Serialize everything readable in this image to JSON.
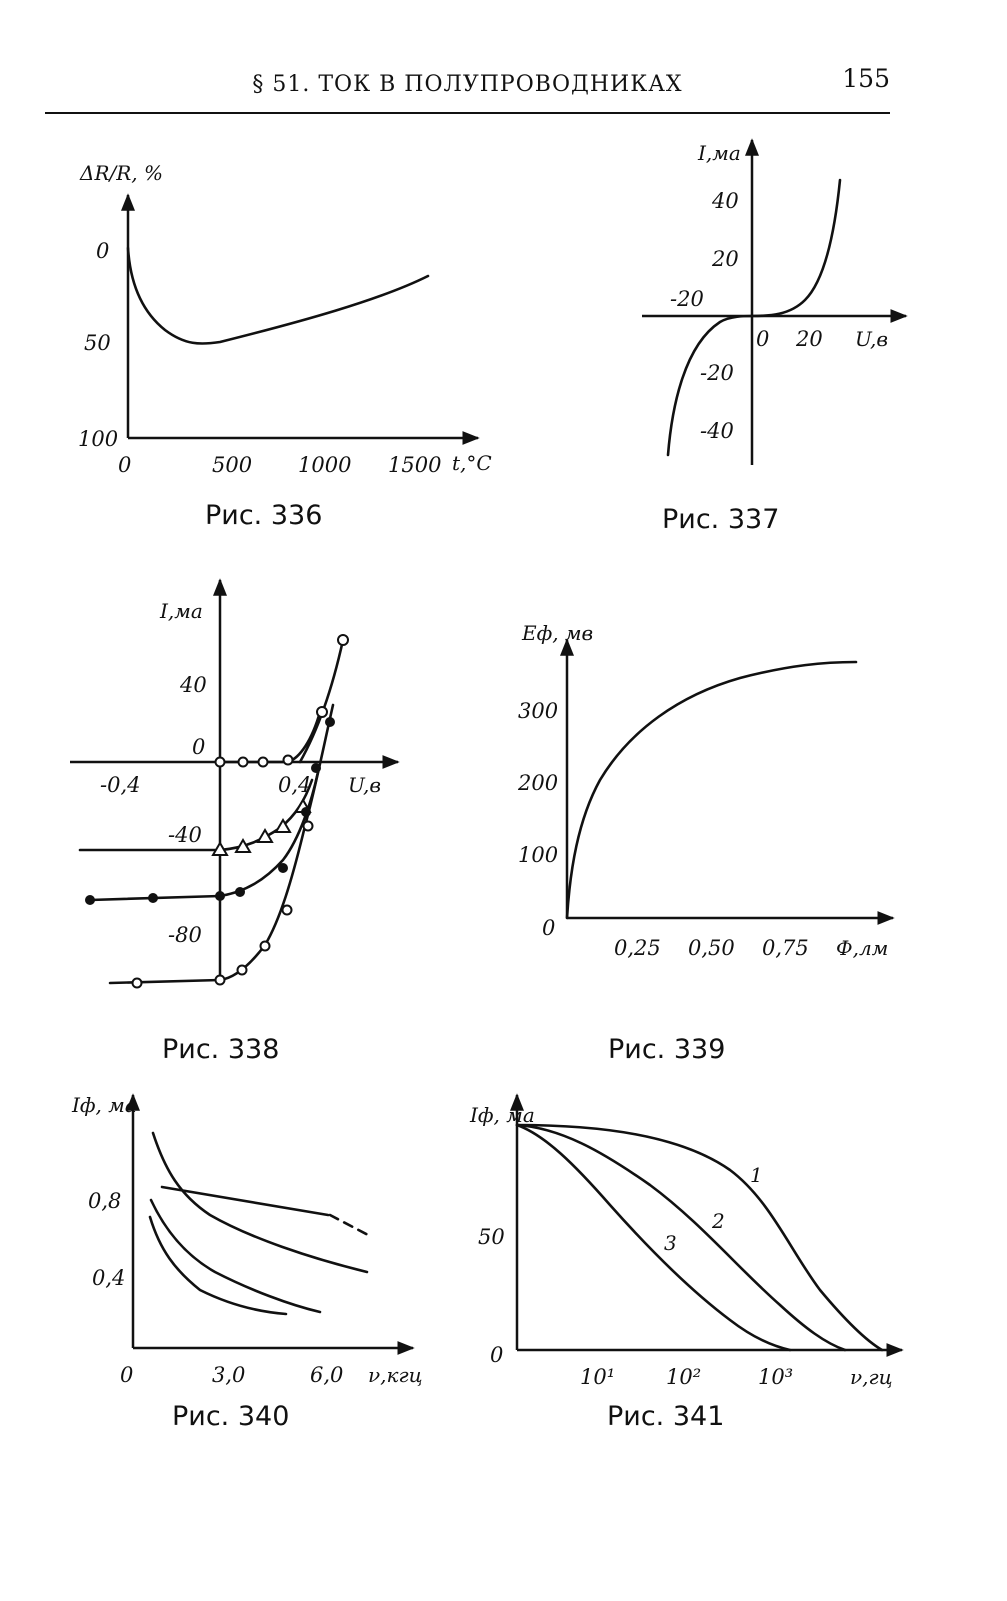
{
  "header": {
    "title": "§ 51. ТОК В ПОЛУПРОВОДНИКАХ",
    "page_number": "155"
  },
  "captions": {
    "fig336": "Рис. 336",
    "fig337": "Рис. 337",
    "fig338": "Рис. 338",
    "fig339": "Рис. 339",
    "fig340": "Рис. 340",
    "fig341": "Рис. 341"
  },
  "chart_data": [
    {
      "id": "fig336",
      "type": "line",
      "ylabel": "ΔR/R, %",
      "xlabel": "t,°C",
      "x_ticks": [
        "0",
        "500",
        "1000",
        "1500"
      ],
      "y_ticks": [
        "0",
        "50",
        "100"
      ],
      "xlim": [
        0,
        1800
      ],
      "ylim_inverted": [
        -20,
        100
      ],
      "series": [
        {
          "x": [
            0,
            30,
            100,
            200,
            330,
            600,
            1000,
            1300,
            1600
          ],
          "y": [
            -5,
            25,
            42,
            49,
            50,
            45,
            35,
            27,
            17
          ]
        }
      ]
    },
    {
      "id": "fig337",
      "type": "line",
      "ylabel": "I,ма",
      "xlabel": "U,в",
      "x_ticks": [
        "-20",
        "0",
        "20"
      ],
      "y_ticks": [
        "40",
        "20",
        "-20",
        "-40"
      ],
      "xlim": [
        -25,
        40
      ],
      "ylim": [
        -50,
        50
      ],
      "series": [
        {
          "x": [
            -22,
            -17,
            -12,
            -7,
            -2,
            0,
            5,
            10,
            15,
            20,
            25,
            29
          ],
          "y": [
            -50,
            -28,
            -12,
            -4,
            -0.5,
            0,
            0.5,
            2,
            6,
            14,
            30,
            50
          ]
        }
      ]
    },
    {
      "id": "fig338",
      "type": "line",
      "ylabel": "I,ма",
      "xlabel": "U,в",
      "x_ticks": [
        "-0,4",
        "0,4"
      ],
      "y_ticks": [
        "40",
        "0",
        "-40",
        "-80"
      ],
      "xlim": [
        -0.6,
        0.75
      ],
      "ylim": [
        -105,
        60
      ],
      "series": [
        {
          "marker": "circle-open",
          "x": [
            0,
            0.1,
            0.2,
            0.3,
            0.45,
            0.55
          ],
          "y": [
            0,
            0,
            0,
            0,
            3,
            20
          ]
        },
        {
          "marker": "circle-cross",
          "x": [
            0,
            0.1,
            0.25,
            0.45,
            0.55,
            0.58
          ],
          "y": [
            0,
            0,
            0.5,
            5,
            18,
            50
          ]
        },
        {
          "marker": "triangle",
          "x": [
            -0.65,
            0,
            0.1,
            0.2,
            0.3,
            0.4,
            0.45,
            0.5
          ],
          "y": [
            -42,
            -42,
            -40,
            -35,
            -32,
            -28,
            -20,
            -5
          ]
        },
        {
          "marker": "circle-filled",
          "x": [
            -0.6,
            -0.3,
            0,
            0.1,
            0.3,
            0.42,
            0.5,
            0.55
          ],
          "y": [
            -63,
            -62,
            -60,
            -58,
            -50,
            -30,
            -5,
            18
          ]
        },
        {
          "marker": "circle-dotted",
          "x": [
            -0.4,
            0,
            0.1,
            0.2,
            0.3,
            0.4,
            0.48,
            0.55
          ],
          "y": [
            -102,
            -100,
            -96,
            -85,
            -68,
            -30,
            -10,
            5
          ]
        }
      ]
    },
    {
      "id": "fig339",
      "type": "line",
      "ylabel": "Eф, мв",
      "xlabel": "Ф,лм",
      "x_ticks": [
        "0,25",
        "0,50",
        "0,75"
      ],
      "y_ticks": [
        "0",
        "100",
        "200",
        "300"
      ],
      "xlim": [
        0,
        1.0
      ],
      "ylim": [
        0,
        380
      ],
      "series": [
        {
          "x": [
            0,
            0.02,
            0.05,
            0.1,
            0.2,
            0.3,
            0.4,
            0.5,
            0.6,
            0.7,
            0.85
          ],
          "y": [
            0,
            90,
            150,
            210,
            265,
            300,
            320,
            335,
            345,
            352,
            360
          ]
        }
      ]
    },
    {
      "id": "fig340",
      "type": "line",
      "ylabel": "Iф, ма",
      "xlabel": "ν,кгц",
      "x_ticks": [
        "0",
        "3,0",
        "6,0"
      ],
      "y_ticks": [
        "0,8",
        "0,4"
      ],
      "xlim": [
        0,
        7.5
      ],
      "ylim": [
        0,
        1.2
      ],
      "series": [
        {
          "x": [
            0.6,
            1.0,
            1.5,
            2.5,
            4.0,
            5.5,
            7.0
          ],
          "y": [
            1.12,
            0.95,
            0.82,
            0.68,
            0.56,
            0.48,
            0.42
          ]
        },
        {
          "x": [
            0.8,
            1.5,
            3.0,
            4.5,
            6.0
          ],
          "y": [
            0.88,
            0.86,
            0.82,
            0.78,
            0.74
          ]
        },
        {
          "x": [
            6.0,
            7.0
          ],
          "y": [
            0.74,
            0.66
          ],
          "style": "dashed"
        },
        {
          "x": [
            0.5,
            1.0,
            2.0,
            3.5,
            5.0,
            5.9
          ],
          "y": [
            0.8,
            0.65,
            0.5,
            0.37,
            0.27,
            0.22
          ]
        },
        {
          "x": [
            0.5,
            1.0,
            2.0,
            3.0,
            4.0,
            4.6
          ],
          "y": [
            0.7,
            0.5,
            0.34,
            0.26,
            0.21,
            0.2
          ]
        }
      ]
    },
    {
      "id": "fig341",
      "type": "line",
      "ylabel": "Iф, ма",
      "xlabel": "ν,гц",
      "x_ticks": [
        "10¹",
        "10²",
        "10³"
      ],
      "y_ticks": [
        "0",
        "50"
      ],
      "x_scale": "log",
      "xlim": [
        1,
        20000
      ],
      "ylim": [
        0,
        110
      ],
      "annotations": [
        "1",
        "2",
        "3"
      ],
      "series": [
        {
          "name": "1",
          "x": [
            1,
            10,
            100,
            1000,
            3000,
            8000,
            15000
          ],
          "y": [
            100,
            98,
            90,
            67,
            40,
            12,
            0
          ]
        },
        {
          "name": "2",
          "x": [
            1,
            5,
            30,
            200,
            1000,
            4000,
            7000
          ],
          "y": [
            100,
            95,
            82,
            56,
            26,
            6,
            0
          ]
        },
        {
          "name": "3",
          "x": [
            1,
            3,
            10,
            50,
            200,
            800,
            1500
          ],
          "y": [
            100,
            90,
            68,
            40,
            18,
            3,
            0
          ]
        }
      ]
    }
  ]
}
